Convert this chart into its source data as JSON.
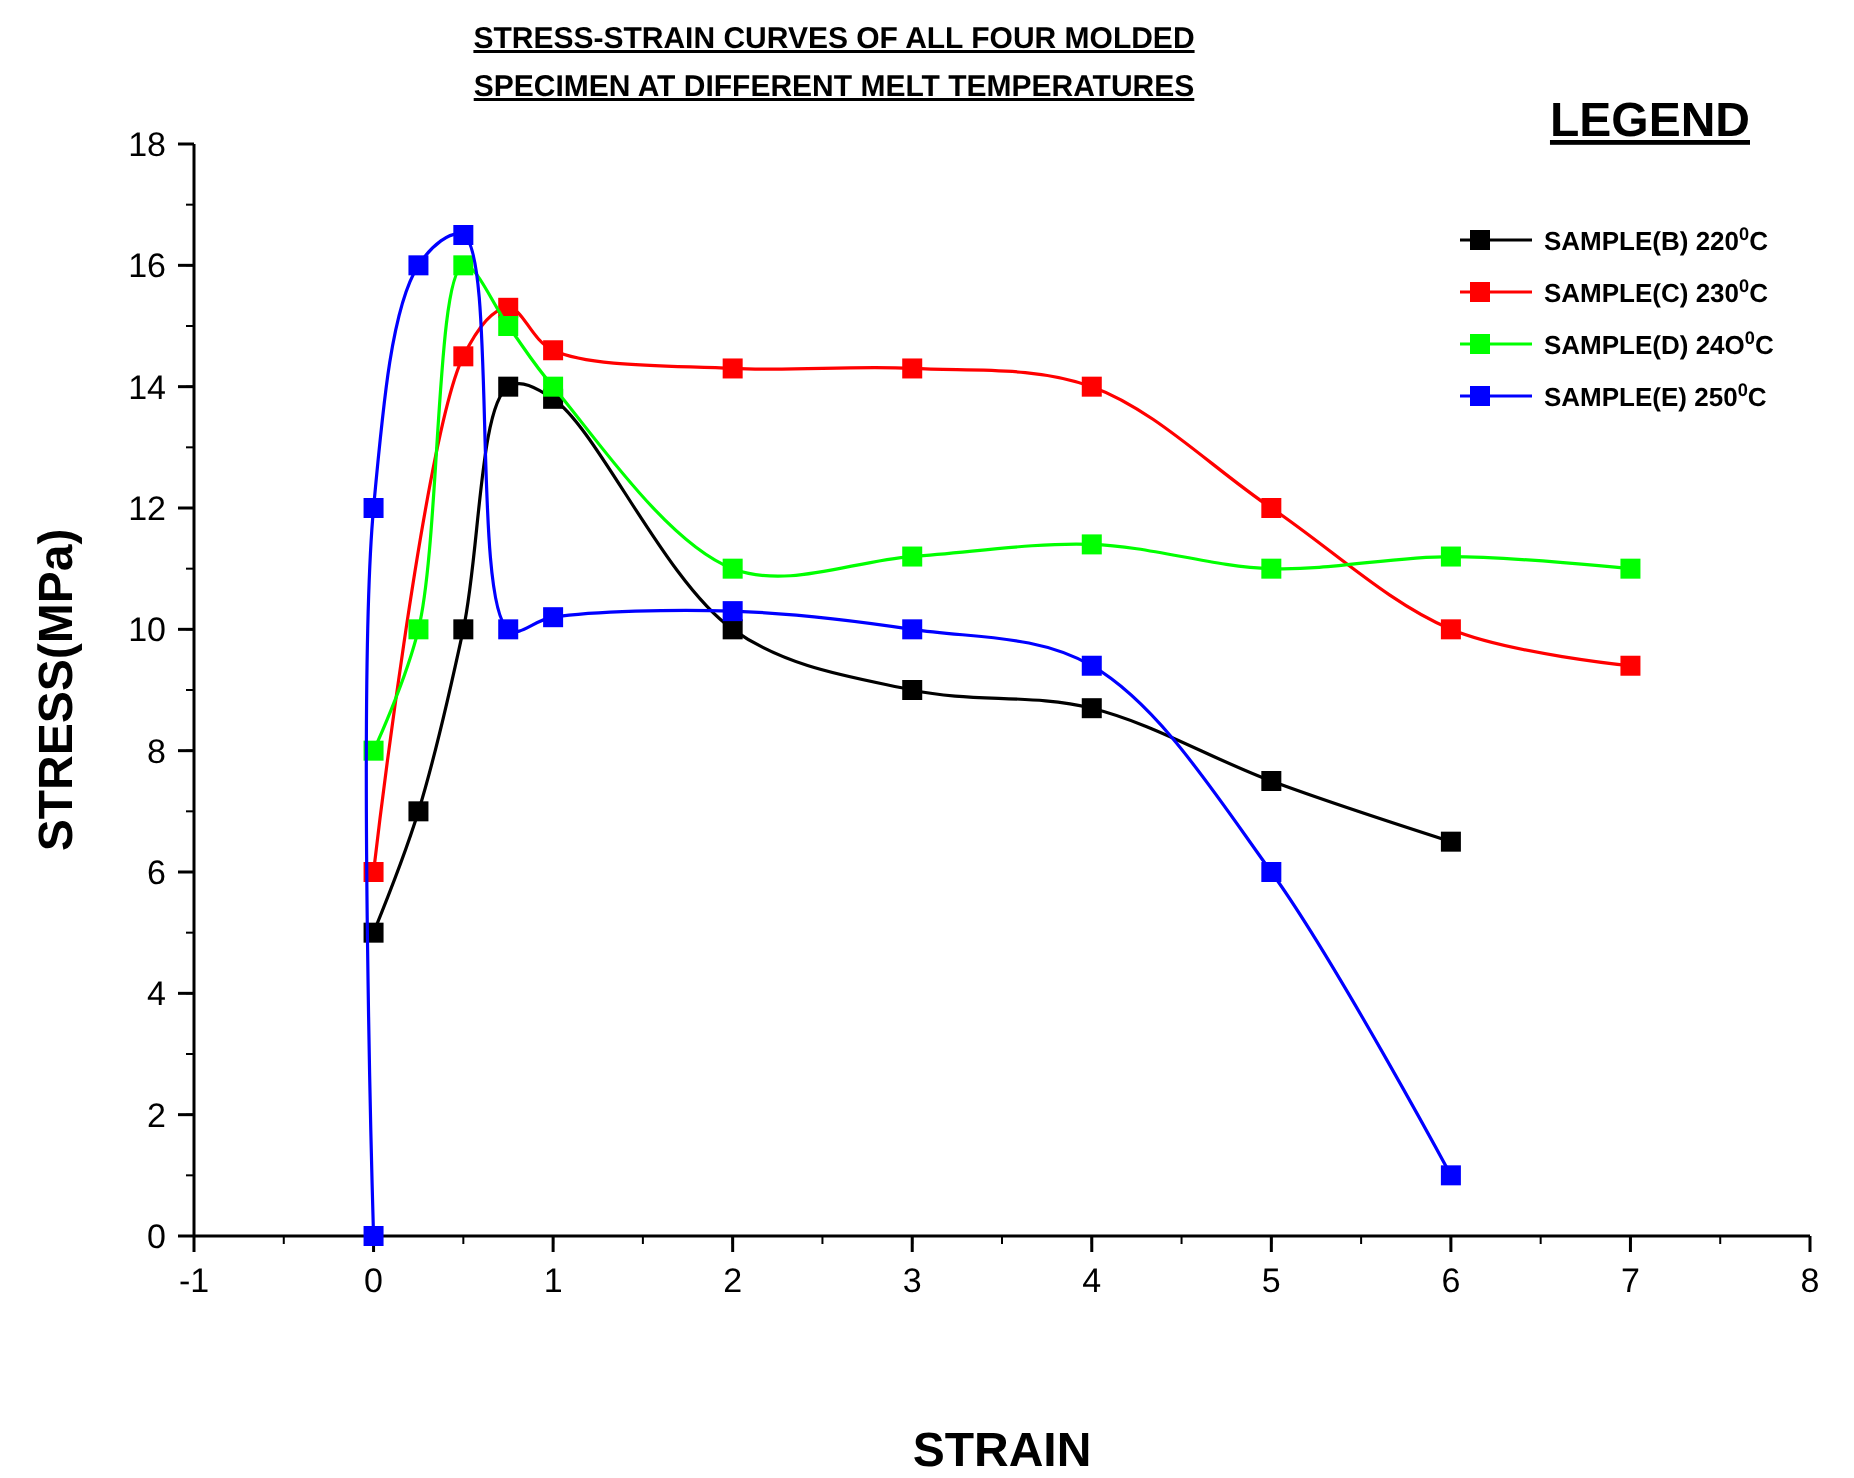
{
  "chart_data": {
    "type": "line",
    "title": "STRESS-STRAIN CURVES OF ALL FOUR MOLDED\nSPECIMEN AT DIFFERENT MELT TEMPERATURES",
    "xlabel": "STRAIN",
    "ylabel": "STRESS(MPa)",
    "legend_title": "LEGEND",
    "xlim": [
      -1,
      8
    ],
    "xticks": [
      -1,
      0,
      1,
      2,
      3,
      4,
      5,
      6,
      7,
      8
    ],
    "ylim": [
      0,
      18
    ],
    "yticks": [
      0,
      2,
      4,
      6,
      8,
      10,
      12,
      14,
      16,
      18
    ],
    "grid": false,
    "legend": "top right",
    "marker": "square",
    "line_style": "solid",
    "series": [
      {
        "name": "SAMPLE(B) 220$^{0}$C",
        "color": "#000000",
        "x": [
          0,
          0.25,
          0.5,
          0.75,
          1,
          2,
          3,
          4,
          5,
          6
        ],
        "values": [
          5,
          7,
          10,
          14,
          13.8,
          10,
          9,
          8.7,
          7.5,
          6.5
        ]
      },
      {
        "name": "SAMPLE(C) 230$^{0}$C",
        "color": "#ff0000",
        "x": [
          0,
          0.5,
          0.75,
          1,
          2,
          3,
          4,
          5,
          6,
          7
        ],
        "values": [
          6,
          14.5,
          15.3,
          14.6,
          14.3,
          14.3,
          14,
          12,
          10,
          9.4
        ]
      },
      {
        "name": "SAMPLE(D) 24O$^{0}$C",
        "color": "#00ff00",
        "x": [
          0,
          0.25,
          0.5,
          0.75,
          1,
          2,
          3,
          4,
          5,
          6,
          7
        ],
        "values": [
          8,
          10,
          16,
          15,
          14,
          11,
          11.2,
          11.4,
          11,
          11.2,
          11
        ]
      },
      {
        "name": "SAMPLE(E) 250$^{0}$C",
        "color": "#0000ff",
        "x": [
          0,
          0,
          0.25,
          0.5,
          0.75,
          1,
          2,
          3,
          4,
          5,
          6
        ],
        "values": [
          0,
          12,
          16,
          16.5,
          10,
          10.2,
          10.3,
          10,
          9.4,
          6,
          1
        ]
      }
    ]
  }
}
